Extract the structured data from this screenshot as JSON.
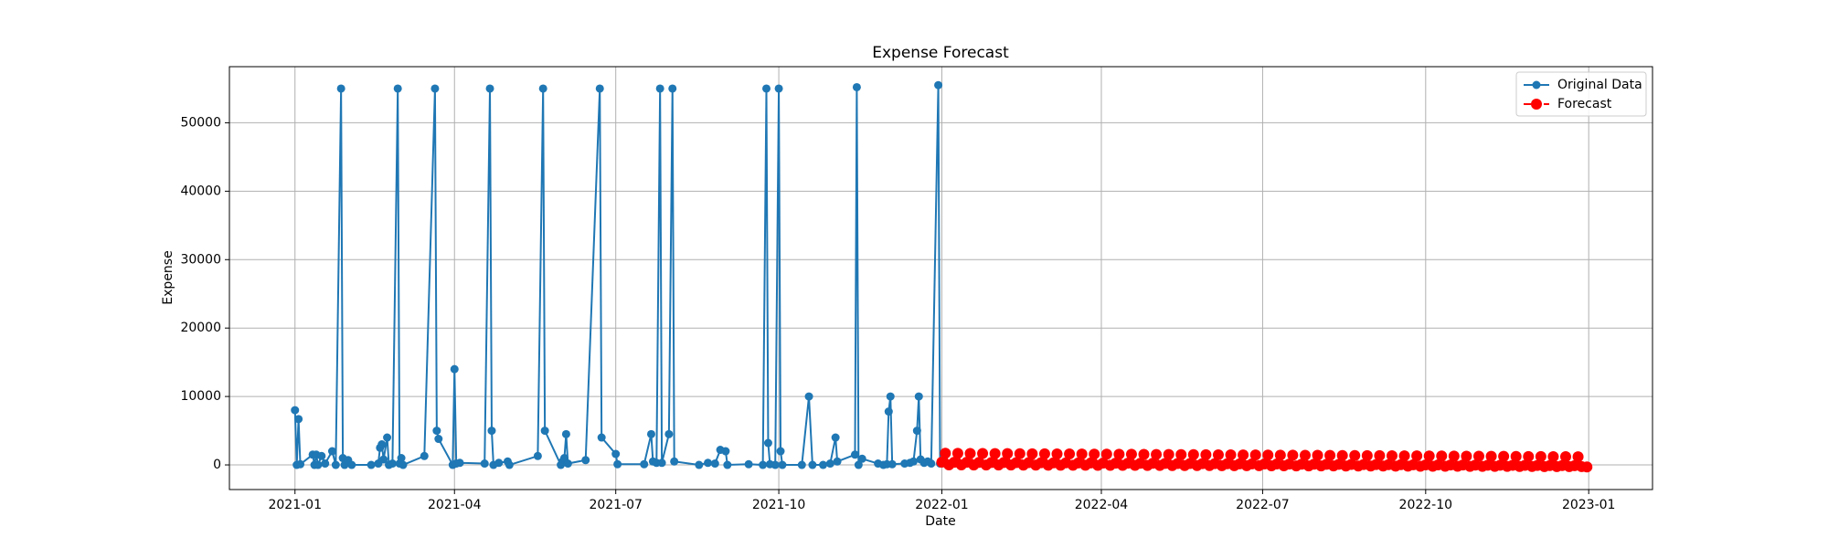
{
  "chart_data": {
    "type": "line",
    "title": "Expense Forecast",
    "xlabel": "Date",
    "ylabel": "Expense",
    "xlim": [
      "2020-11-25",
      "2023-02-06"
    ],
    "xticks": [
      {
        "value": "2021-01-01",
        "label": "2021-01"
      },
      {
        "value": "2021-04-01",
        "label": "2021-04"
      },
      {
        "value": "2021-07-01",
        "label": "2021-07"
      },
      {
        "value": "2021-10-01",
        "label": "2021-10"
      },
      {
        "value": "2022-01-01",
        "label": "2022-01"
      },
      {
        "value": "2022-04-01",
        "label": "2022-04"
      },
      {
        "value": "2022-07-01",
        "label": "2022-07"
      },
      {
        "value": "2022-10-01",
        "label": "2022-10"
      },
      {
        "value": "2023-01-01",
        "label": "2023-01"
      }
    ],
    "ylim": [
      -3600,
      58200
    ],
    "yticks": [
      0,
      10000,
      20000,
      30000,
      40000,
      50000
    ],
    "grid": true,
    "legend": "upper right",
    "series": [
      {
        "name": "Original Data",
        "color": "#1f77b4",
        "linestyle": "solid",
        "x": [
          "2021-01-01",
          "2021-01-02",
          "2021-01-03",
          "2021-01-04",
          "2021-01-11",
          "2021-01-12",
          "2021-01-13",
          "2021-01-14",
          "2021-01-16",
          "2021-01-18",
          "2021-01-22",
          "2021-01-24",
          "2021-01-27",
          "2021-01-28",
          "2021-01-29",
          "2021-01-31",
          "2021-02-02",
          "2021-02-13",
          "2021-02-17",
          "2021-02-18",
          "2021-02-19",
          "2021-02-20",
          "2021-02-22",
          "2021-02-23",
          "2021-02-25",
          "2021-02-28",
          "2021-03-01",
          "2021-03-02",
          "2021-03-03",
          "2021-03-15",
          "2021-03-21",
          "2021-03-22",
          "2021-03-23",
          "2021-03-31",
          "2021-04-01",
          "2021-04-02",
          "2021-04-04",
          "2021-04-18",
          "2021-04-21",
          "2021-04-22",
          "2021-04-23",
          "2021-04-26",
          "2021-05-01",
          "2021-05-02",
          "2021-05-18",
          "2021-05-21",
          "2021-05-22",
          "2021-05-31",
          "2021-06-01",
          "2021-06-02",
          "2021-06-03",
          "2021-06-04",
          "2021-06-14",
          "2021-06-22",
          "2021-06-23",
          "2021-07-01",
          "2021-07-02",
          "2021-07-17",
          "2021-07-21",
          "2021-07-22",
          "2021-07-24",
          "2021-07-26",
          "2021-07-27",
          "2021-07-31",
          "2021-08-02",
          "2021-08-03",
          "2021-08-17",
          "2021-08-22",
          "2021-08-26",
          "2021-08-29",
          "2021-09-01",
          "2021-09-02",
          "2021-09-14",
          "2021-09-22",
          "2021-09-24",
          "2021-09-25",
          "2021-09-26",
          "2021-09-29",
          "2021-10-01",
          "2021-10-02",
          "2021-10-03",
          "2021-10-14",
          "2021-10-18",
          "2021-10-20",
          "2021-10-26",
          "2021-10-30",
          "2021-11-02",
          "2021-11-03",
          "2021-11-13",
          "2021-11-14",
          "2021-11-15",
          "2021-11-17",
          "2021-11-26",
          "2021-11-29",
          "2021-12-01",
          "2021-12-02",
          "2021-12-03",
          "2021-12-04",
          "2021-12-11",
          "2021-12-14",
          "2021-12-16",
          "2021-12-18",
          "2021-12-19",
          "2021-12-20",
          "2021-12-22",
          "2021-12-24",
          "2021-12-26",
          "2021-12-30",
          "2021-12-31"
        ],
        "values": [
          8000,
          0,
          6700,
          100,
          1500,
          0,
          1500,
          0,
          1300,
          200,
          2000,
          0,
          55000,
          1000,
          0,
          700,
          0,
          0,
          200,
          2500,
          3000,
          800,
          4000,
          0,
          200,
          55000,
          200,
          1000,
          0,
          1300,
          55000,
          5000,
          3800,
          0,
          14000,
          200,
          300,
          200,
          55000,
          5000,
          0,
          300,
          500,
          0,
          1300,
          55000,
          5000,
          0,
          500,
          1000,
          4500,
          200,
          700,
          55000,
          4000,
          1600,
          100,
          100,
          4500,
          500,
          300,
          55000,
          300,
          4500,
          55000,
          500,
          0,
          300,
          200,
          2200,
          2000,
          0,
          100,
          0,
          55000,
          3200,
          100,
          0,
          55000,
          2000,
          0,
          0,
          10000,
          0,
          0,
          200,
          4000,
          500,
          1500,
          55200,
          0,
          900,
          200,
          0,
          100,
          7800,
          10000,
          100,
          200,
          300,
          500,
          5000,
          10000,
          800,
          300,
          500,
          200,
          55500,
          200
        ]
      },
      {
        "name": "Forecast",
        "color": "#ff0000",
        "linestyle": "dashed",
        "x": [
          "2022-01-01",
          "2022-01-03",
          "2022-01-05",
          "2022-01-08",
          "2022-01-10",
          "2022-01-12",
          "2022-01-15",
          "2022-01-17",
          "2022-01-19",
          "2022-01-22",
          "2022-01-24",
          "2022-01-26",
          "2022-01-29",
          "2022-01-31",
          "2022-02-02",
          "2022-02-05",
          "2022-02-07",
          "2022-02-09",
          "2022-02-12",
          "2022-02-14",
          "2022-02-16",
          "2022-02-19",
          "2022-02-21",
          "2022-02-23",
          "2022-02-26",
          "2022-02-28",
          "2022-03-02",
          "2022-03-05",
          "2022-03-07",
          "2022-03-09",
          "2022-03-12",
          "2022-03-14",
          "2022-03-16",
          "2022-03-19",
          "2022-03-21",
          "2022-03-23",
          "2022-03-26",
          "2022-03-28",
          "2022-03-30",
          "2022-04-02",
          "2022-04-04",
          "2022-04-06",
          "2022-04-09",
          "2022-04-11",
          "2022-04-13",
          "2022-04-16",
          "2022-04-18",
          "2022-04-20",
          "2022-04-23",
          "2022-04-25",
          "2022-04-27",
          "2022-04-30",
          "2022-05-02",
          "2022-05-04",
          "2022-05-07",
          "2022-05-09",
          "2022-05-11",
          "2022-05-14",
          "2022-05-16",
          "2022-05-18",
          "2022-05-21",
          "2022-05-23",
          "2022-05-25",
          "2022-05-28",
          "2022-05-30",
          "2022-06-01",
          "2022-06-04",
          "2022-06-06",
          "2022-06-08",
          "2022-06-11",
          "2022-06-13",
          "2022-06-15",
          "2022-06-18",
          "2022-06-20",
          "2022-06-22",
          "2022-06-25",
          "2022-06-27",
          "2022-06-29",
          "2022-07-02",
          "2022-07-04",
          "2022-07-06",
          "2022-07-09",
          "2022-07-11",
          "2022-07-13",
          "2022-07-16",
          "2022-07-18",
          "2022-07-20",
          "2022-07-23",
          "2022-07-25",
          "2022-07-27",
          "2022-07-30",
          "2022-08-01",
          "2022-08-03",
          "2022-08-06",
          "2022-08-08",
          "2022-08-10",
          "2022-08-13",
          "2022-08-15",
          "2022-08-17",
          "2022-08-20",
          "2022-08-22",
          "2022-08-24",
          "2022-08-27",
          "2022-08-29",
          "2022-08-31",
          "2022-09-03",
          "2022-09-05",
          "2022-09-07",
          "2022-09-10",
          "2022-09-12",
          "2022-09-14",
          "2022-09-17",
          "2022-09-19",
          "2022-09-21",
          "2022-09-24",
          "2022-09-26",
          "2022-09-28",
          "2022-10-01",
          "2022-10-03",
          "2022-10-05",
          "2022-10-08",
          "2022-10-10",
          "2022-10-12",
          "2022-10-15",
          "2022-10-17",
          "2022-10-19",
          "2022-10-22",
          "2022-10-24",
          "2022-10-26",
          "2022-10-29",
          "2022-10-31",
          "2022-11-02",
          "2022-11-05",
          "2022-11-07",
          "2022-11-09",
          "2022-11-12",
          "2022-11-14",
          "2022-11-16",
          "2022-11-19",
          "2022-11-21",
          "2022-11-23",
          "2022-11-26",
          "2022-11-28",
          "2022-11-30",
          "2022-12-03",
          "2022-12-05",
          "2022-12-07",
          "2022-12-10",
          "2022-12-12",
          "2022-12-14",
          "2022-12-17",
          "2022-12-19",
          "2022-12-21",
          "2022-12-24",
          "2022-12-26",
          "2022-12-28",
          "2022-12-31"
        ],
        "values": [
          400,
          1700,
          0,
          390,
          1690,
          0,
          380,
          1680,
          -10,
          370,
          1670,
          -10,
          360,
          1660,
          -20,
          350,
          1650,
          -20,
          340,
          1640,
          -30,
          330,
          1630,
          -30,
          320,
          1620,
          -40,
          310,
          1610,
          -40,
          300,
          1600,
          -50,
          290,
          1590,
          -50,
          280,
          1580,
          -60,
          270,
          1570,
          -60,
          260,
          1560,
          -70,
          250,
          1550,
          -70,
          240,
          1540,
          -80,
          230,
          1530,
          -80,
          220,
          1520,
          -90,
          210,
          1510,
          -90,
          200,
          1500,
          -100,
          190,
          1490,
          -100,
          180,
          1480,
          -110,
          170,
          1470,
          -110,
          160,
          1460,
          -120,
          150,
          1450,
          -120,
          140,
          1440,
          -130,
          130,
          1430,
          -130,
          120,
          1420,
          -140,
          110,
          1410,
          -140,
          100,
          1400,
          -150,
          90,
          1390,
          -150,
          80,
          1380,
          -160,
          70,
          1370,
          -160,
          60,
          1360,
          -170,
          50,
          1350,
          -170,
          40,
          1340,
          -180,
          30,
          1330,
          -180,
          20,
          1320,
          -190,
          10,
          1310,
          -190,
          0,
          1300,
          -200,
          -10,
          1290,
          -200,
          -20,
          1280,
          -210,
          -30,
          1270,
          -210,
          -40,
          1260,
          -220,
          -50,
          1250,
          -220,
          -60,
          1240,
          -230,
          -70,
          1230,
          -230,
          -80,
          1220,
          -240,
          -90,
          1210,
          -240,
          -100,
          1200,
          -250,
          -110,
          1190,
          -250,
          -300
        ]
      }
    ]
  }
}
